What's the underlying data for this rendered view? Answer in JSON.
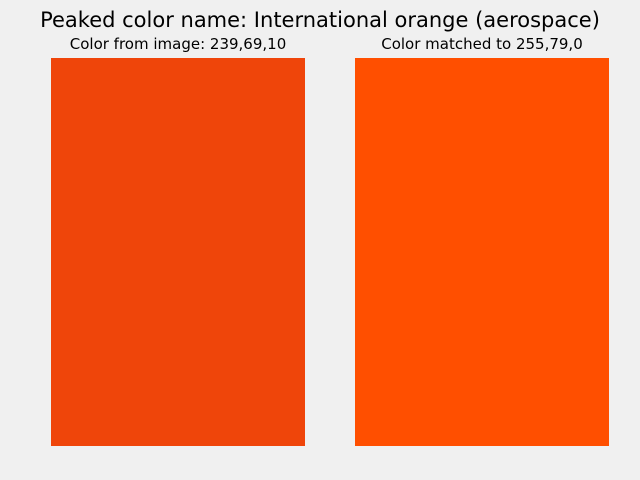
{
  "figure": {
    "title": "Peaked color name: International orange (aerospace)",
    "background": "#f0f0f0"
  },
  "panels": [
    {
      "title": "Color from image: 239,69,10",
      "rgb": [
        239,
        69,
        10
      ],
      "color": "#ef450a"
    },
    {
      "title": "Color matched to 255,79,0",
      "rgb": [
        255,
        79,
        0
      ],
      "color": "#ff4f00"
    }
  ]
}
